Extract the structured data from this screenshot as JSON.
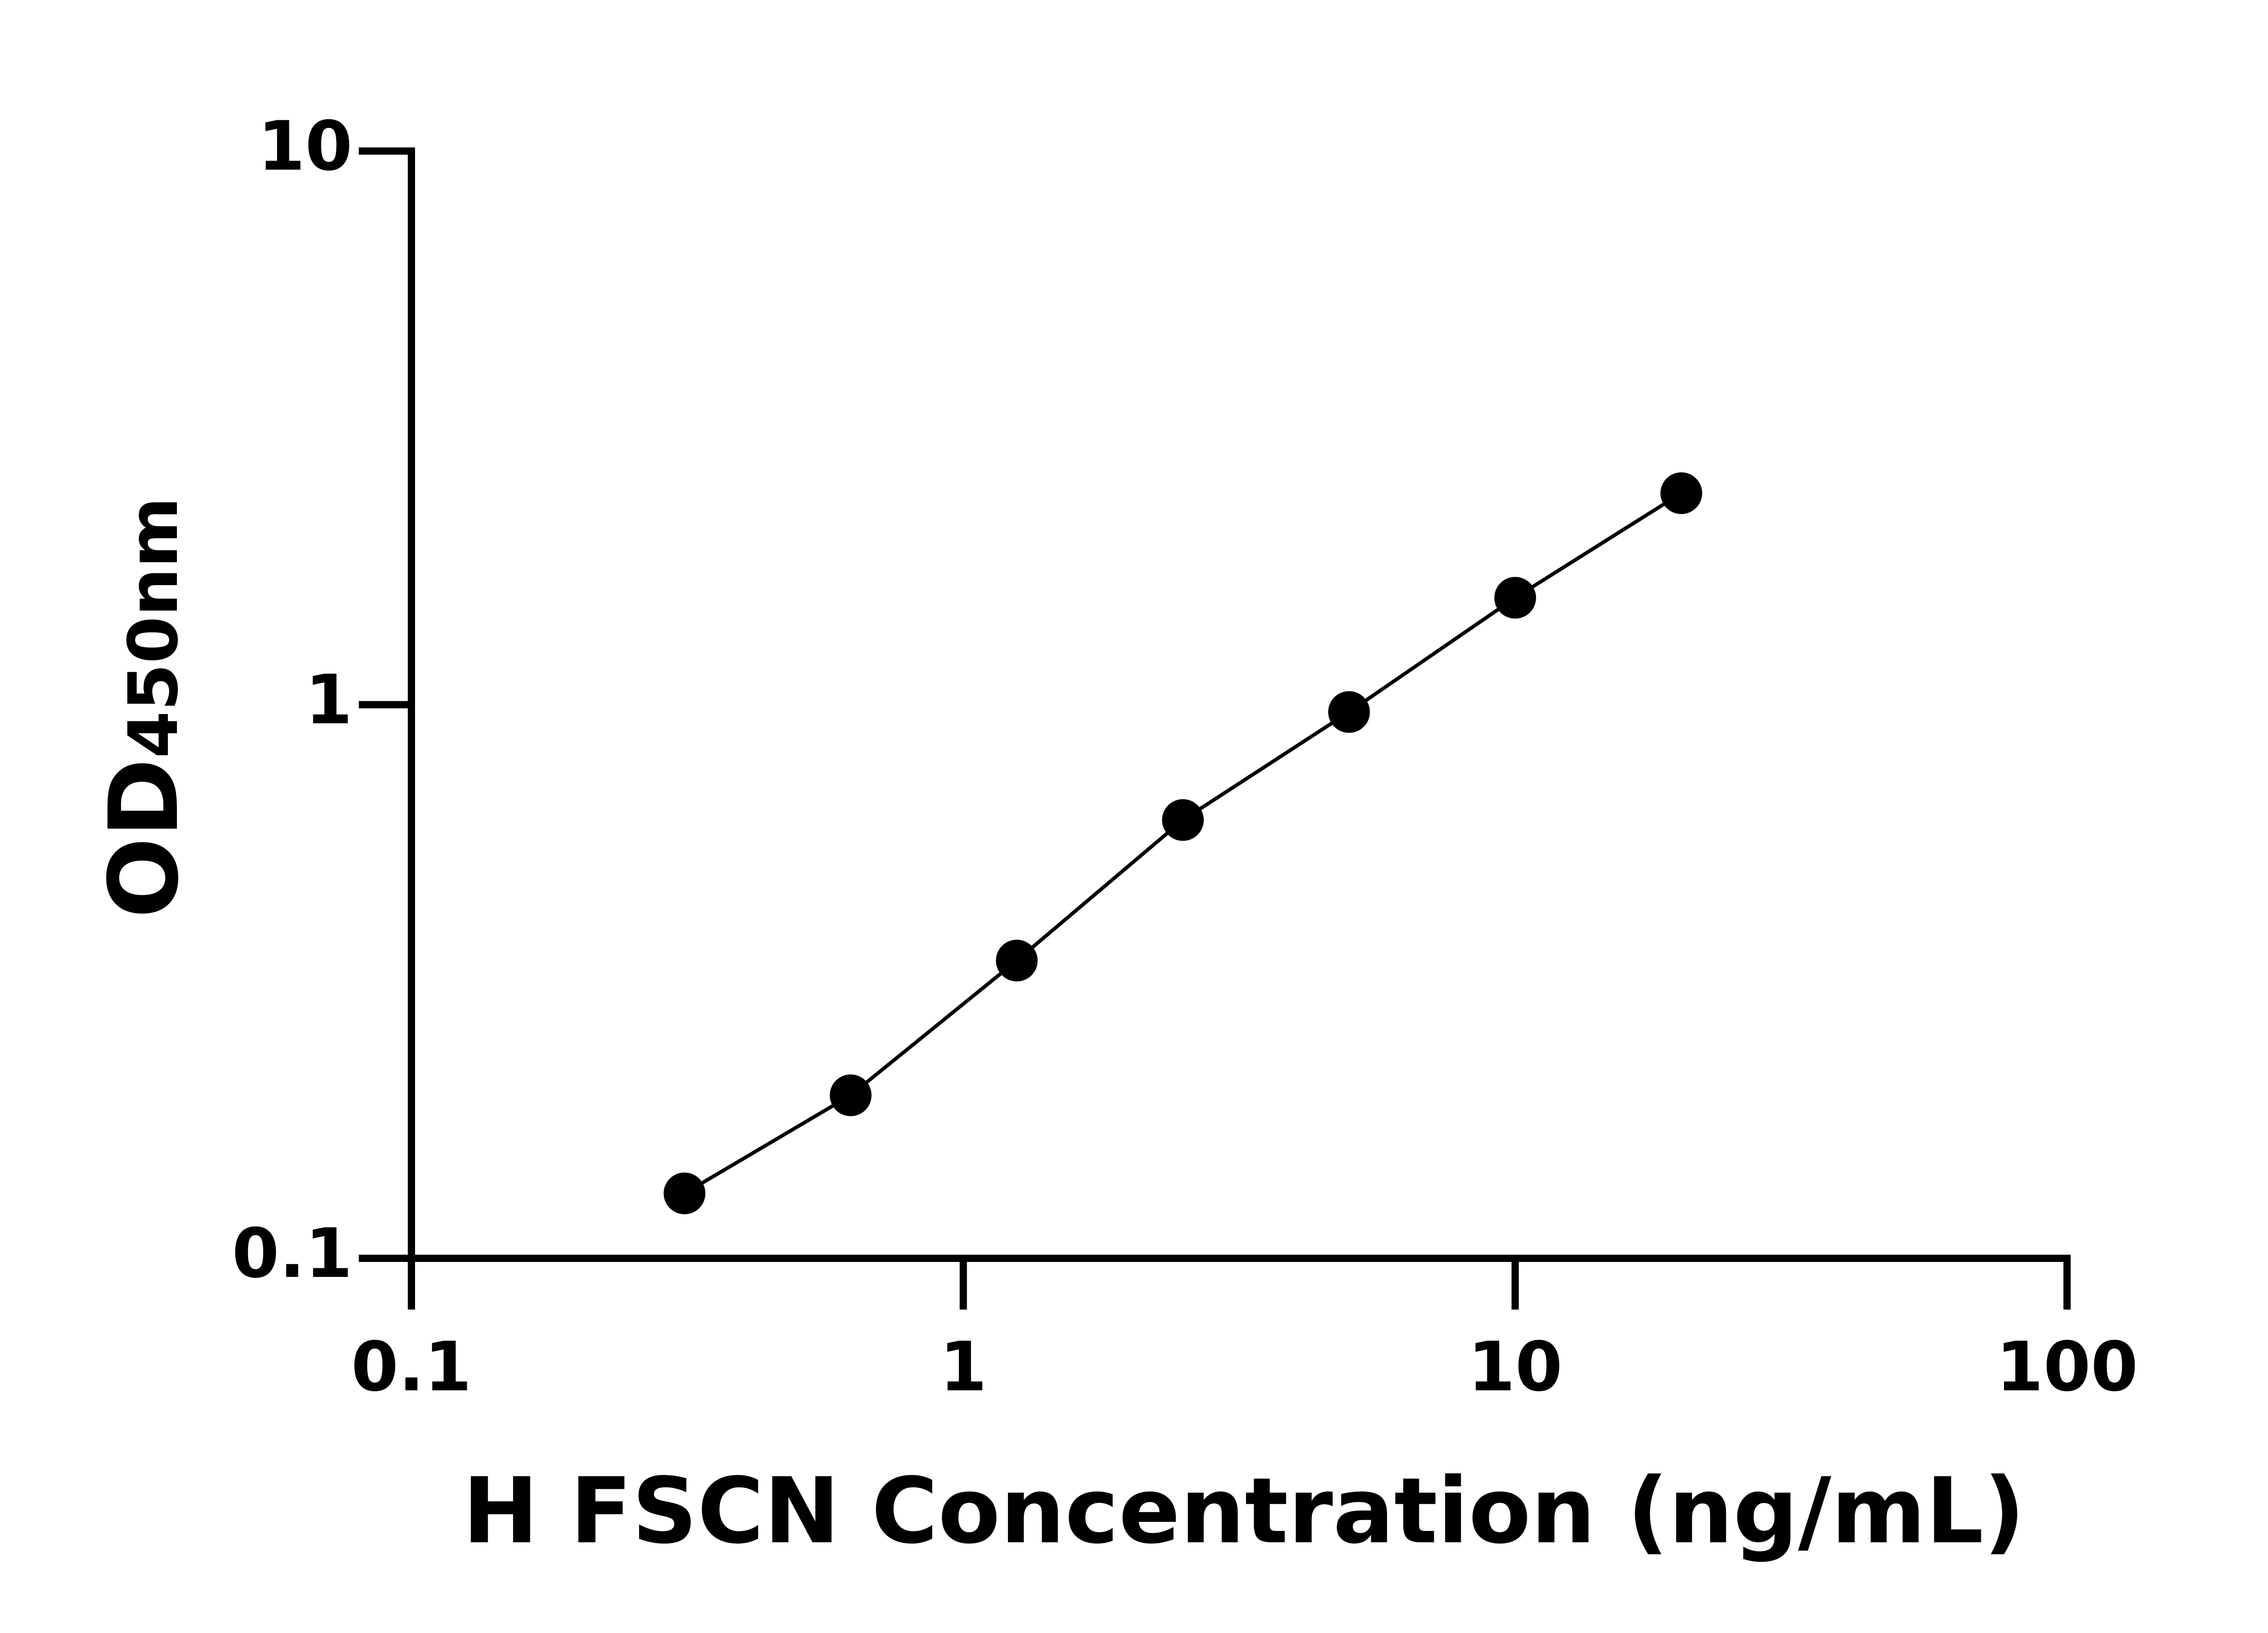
{
  "chart_data": {
    "type": "line",
    "x_label": "H FSCN Concentration (ng/mL)",
    "y_label": "OD",
    "y_label_sub": "450nm",
    "xscale": "log",
    "yscale": "log",
    "xlim": [
      0.1,
      100
    ],
    "xticks": [
      0.1,
      1,
      10,
      100
    ],
    "ylim": [
      0.1,
      10
    ],
    "yticks": [
      0.1,
      1,
      10
    ],
    "x": [
      0.3125,
      0.625,
      1.25,
      2.5,
      5,
      10,
      20
    ],
    "series": [
      {
        "color": "#000000",
        "values": [
          0.131,
          0.197,
          0.345,
          0.619,
          0.97,
          1.56,
          2.41
        ]
      }
    ],
    "grid": false
  }
}
